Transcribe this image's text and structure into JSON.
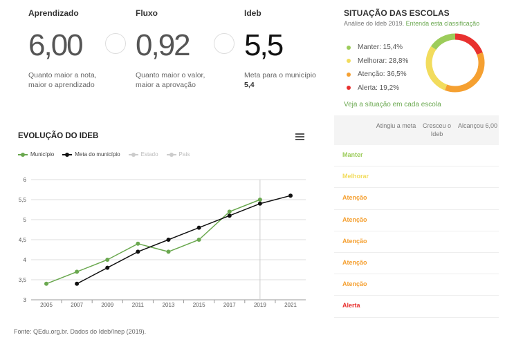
{
  "metrics": [
    {
      "title": "Aprendizado",
      "value": "6,00",
      "desc1": "Quanto maior a nota,",
      "desc2": "maior o aprendizado"
    },
    {
      "title": "Fluxo",
      "value": "0,92",
      "desc1": "Quanto maior o valor,",
      "desc2": "maior a aprovação"
    },
    {
      "title": "Ideb",
      "value": "5,5",
      "desc1": "Meta para o município",
      "desc2": "5,4"
    }
  ],
  "situacao": {
    "title": "SITUAÇÃO DAS ESCOLAS",
    "subtitle": "Análise do Ideb 2019.",
    "subtitle_link": "Entenda esta classificação",
    "link": "Veja a situação em cada escola",
    "items": [
      {
        "label": "Manter: 15,4%",
        "value": 15.4,
        "color": "#9ccc5a"
      },
      {
        "label": "Melhorar: 28,8%",
        "value": 28.8,
        "color": "#f2dc5d"
      },
      {
        "label": "Atenção: 36,5%",
        "value": 36.5,
        "color": "#f5a031"
      },
      {
        "label": "Alerta: 19,2%",
        "value": 19.2,
        "color": "#e8312f"
      }
    ]
  },
  "table": {
    "headers": [
      "Atingiu a meta",
      "Cresceu o Ideb",
      "Alcançou 6,00"
    ],
    "rows": [
      {
        "label": "Manter",
        "color": "#9ccc5a"
      },
      {
        "label": "Melhorar",
        "color": "#f2dc5d"
      },
      {
        "label": "Atenção",
        "color": "#f5a031"
      },
      {
        "label": "Atenção",
        "color": "#f5a031"
      },
      {
        "label": "Atenção",
        "color": "#f5a031"
      },
      {
        "label": "Atenção",
        "color": "#f5a031"
      },
      {
        "label": "Atenção",
        "color": "#f5a031"
      },
      {
        "label": "Alerta",
        "color": "#e8312f"
      }
    ]
  },
  "chart_data": {
    "type": "line",
    "title": "EVOLUÇÃO DO IDEB",
    "x": [
      2005,
      2007,
      2009,
      2011,
      2013,
      2015,
      2017,
      2019,
      2021
    ],
    "x_tick_labels": [
      "2005",
      "2007",
      "2009",
      "2011",
      "2013",
      "2015",
      "2017",
      "2019",
      "2021"
    ],
    "y_tick_labels": [
      "3",
      "3,5",
      "4",
      "4,5",
      "5",
      "5,5",
      "6"
    ],
    "ylim": [
      3,
      6
    ],
    "grid": true,
    "legend": "top-left",
    "series": [
      {
        "name": "Município",
        "color": "#6aa84f",
        "visible": true,
        "points": [
          [
            2005,
            3.4
          ],
          [
            2007,
            3.7
          ],
          [
            2009,
            4.0
          ],
          [
            2011,
            4.4
          ],
          [
            2013,
            4.2
          ],
          [
            2015,
            4.5
          ],
          [
            2017,
            5.2
          ],
          [
            2019,
            5.5
          ]
        ]
      },
      {
        "name": "Meta do município",
        "color": "#111111",
        "visible": true,
        "points": [
          [
            2007,
            3.4
          ],
          [
            2009,
            3.8
          ],
          [
            2011,
            4.2
          ],
          [
            2013,
            4.5
          ],
          [
            2015,
            4.8
          ],
          [
            2017,
            5.1
          ],
          [
            2019,
            5.4
          ],
          [
            2021,
            5.6
          ]
        ]
      },
      {
        "name": "Estado",
        "color": "#cccccc",
        "visible": false,
        "points": []
      },
      {
        "name": "País",
        "color": "#cccccc",
        "visible": false,
        "points": []
      }
    ],
    "highlight_x": 2019
  },
  "source": "Fonte: QEdu.org.br. Dados do Ideb/Inep (2019)."
}
